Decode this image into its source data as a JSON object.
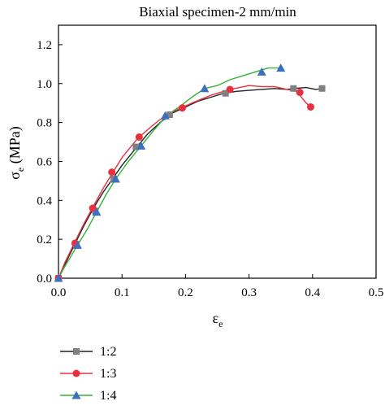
{
  "chart_data": {
    "type": "line",
    "title": "Biaxial specimen-2 mm/min",
    "xlabel": "ε",
    "xlabel_sub": "e",
    "ylabel": "σ",
    "ylabel_sub": "e",
    "ylabel_unit": " (MPa)",
    "xlim": [
      0.0,
      0.5
    ],
    "ylim": [
      0.0,
      1.3
    ],
    "xticks": [
      0.0,
      0.1,
      0.2,
      0.3,
      0.4,
      0.5
    ],
    "xtick_labels": [
      "0.0",
      "0.1",
      "0.2",
      "0.3",
      "0.4",
      "0.5"
    ],
    "yticks": [
      0.0,
      0.2,
      0.4,
      0.6,
      0.8,
      1.0,
      1.2
    ],
    "ytick_labels": [
      "0.0",
      "0.2",
      "0.4",
      "0.6",
      "0.8",
      "1.0",
      "1.2"
    ],
    "grid": false,
    "legend_position": "bottom-left",
    "series": [
      {
        "name": "1:2",
        "color": "#222222",
        "marker_color": "#808080",
        "marker": "square",
        "x": [
          0.0,
          0.01,
          0.025,
          0.04,
          0.055,
          0.07,
          0.085,
          0.1,
          0.12,
          0.14,
          0.16,
          0.18,
          0.2,
          0.22,
          0.24,
          0.26,
          0.28,
          0.3,
          0.32,
          0.34,
          0.36,
          0.37,
          0.39,
          0.405,
          0.415
        ],
        "y": [
          0.0,
          0.07,
          0.17,
          0.27,
          0.36,
          0.44,
          0.51,
          0.58,
          0.66,
          0.74,
          0.8,
          0.85,
          0.88,
          0.91,
          0.93,
          0.95,
          0.96,
          0.965,
          0.97,
          0.975,
          0.97,
          0.975,
          0.98,
          0.97,
          0.975
        ],
        "marker_x": [
          0.0,
          0.028,
          0.058,
          0.087,
          0.122,
          0.175,
          0.263,
          0.37,
          0.415
        ],
        "marker_y": [
          0.0,
          0.175,
          0.345,
          0.51,
          0.675,
          0.84,
          0.95,
          0.975,
          0.975
        ]
      },
      {
        "name": "1:3",
        "color": "#e8303f",
        "marker_color": "#e8303f",
        "marker": "circle",
        "x": [
          0.0,
          0.01,
          0.025,
          0.04,
          0.055,
          0.07,
          0.085,
          0.1,
          0.125,
          0.15,
          0.17,
          0.19,
          0.21,
          0.24,
          0.27,
          0.3,
          0.32,
          0.34,
          0.36,
          0.375,
          0.385,
          0.39,
          0.397
        ],
        "y": [
          0.0,
          0.08,
          0.18,
          0.28,
          0.37,
          0.46,
          0.54,
          0.62,
          0.72,
          0.79,
          0.84,
          0.87,
          0.9,
          0.94,
          0.97,
          0.99,
          0.985,
          0.985,
          0.97,
          0.96,
          0.92,
          0.9,
          0.88
        ],
        "marker_x": [
          0.0,
          0.026,
          0.054,
          0.084,
          0.127,
          0.195,
          0.27,
          0.38,
          0.397
        ],
        "marker_y": [
          0.0,
          0.18,
          0.36,
          0.545,
          0.725,
          0.875,
          0.97,
          0.955,
          0.88
        ]
      },
      {
        "name": "1:4",
        "color": "#33b233",
        "marker_color": "#3c6fbf",
        "marker": "triangle",
        "x": [
          0.0,
          0.01,
          0.03,
          0.045,
          0.06,
          0.075,
          0.09,
          0.11,
          0.13,
          0.15,
          0.17,
          0.19,
          0.21,
          0.23,
          0.25,
          0.27,
          0.29,
          0.31,
          0.33,
          0.35
        ],
        "y": [
          0.0,
          0.06,
          0.17,
          0.25,
          0.34,
          0.43,
          0.51,
          0.6,
          0.68,
          0.76,
          0.835,
          0.88,
          0.93,
          0.975,
          0.99,
          1.02,
          1.04,
          1.06,
          1.08,
          1.08
        ],
        "marker_x": [
          0.0,
          0.03,
          0.06,
          0.09,
          0.13,
          0.168,
          0.23,
          0.32,
          0.35
        ],
        "marker_y": [
          0.0,
          0.17,
          0.34,
          0.51,
          0.68,
          0.835,
          0.975,
          1.06,
          1.08
        ]
      }
    ]
  }
}
